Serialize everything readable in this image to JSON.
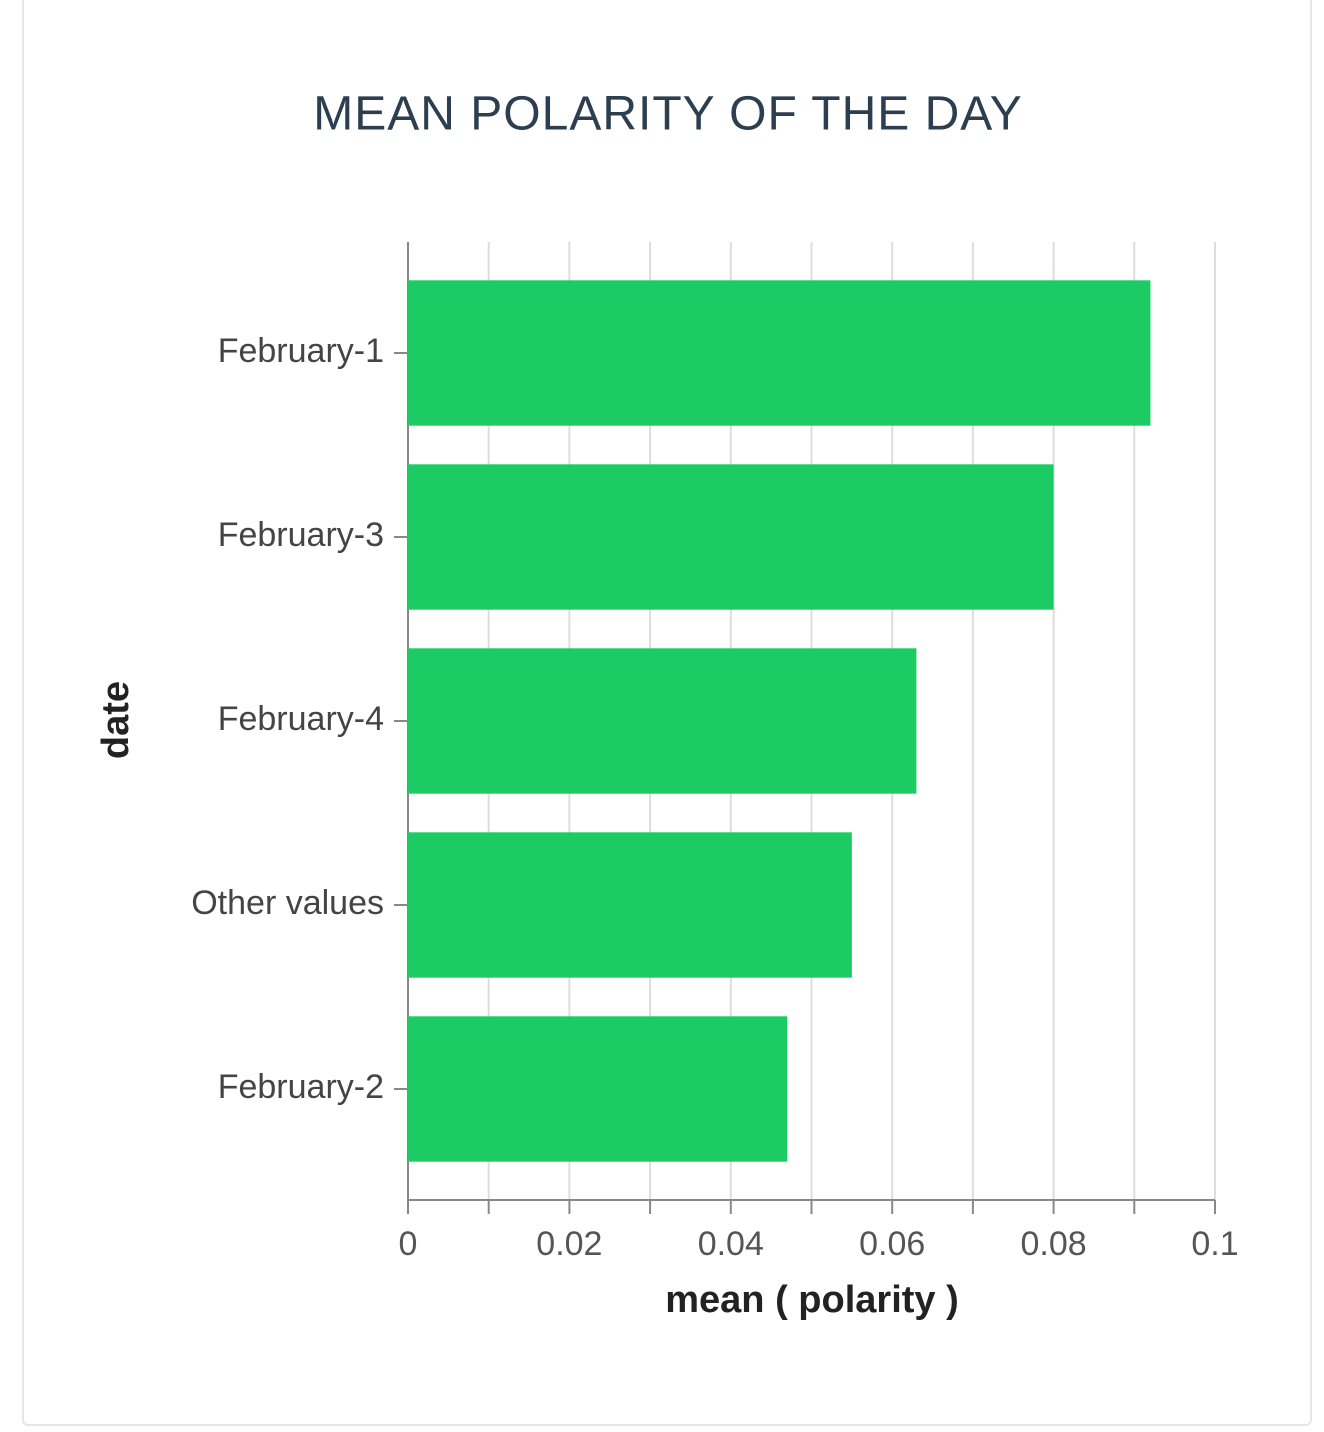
{
  "chart_data": {
    "type": "bar",
    "orientation": "horizontal",
    "title": "MEAN POLARITY OF THE DAY",
    "x_label": "mean ( polarity )",
    "y_label": "date",
    "categories": [
      "February-1",
      "February-3",
      "February-4",
      "Other values",
      "February-2"
    ],
    "values": [
      0.092,
      0.08,
      0.063,
      0.055,
      0.047
    ],
    "color": "#1ccb63",
    "xlim": [
      0,
      0.1
    ],
    "xticks": [
      0,
      0.02,
      0.04,
      0.06,
      0.08,
      0.1
    ],
    "minor_xticks": [
      0.01,
      0.03,
      0.05,
      0.07,
      0.09
    ],
    "grid": true
  }
}
